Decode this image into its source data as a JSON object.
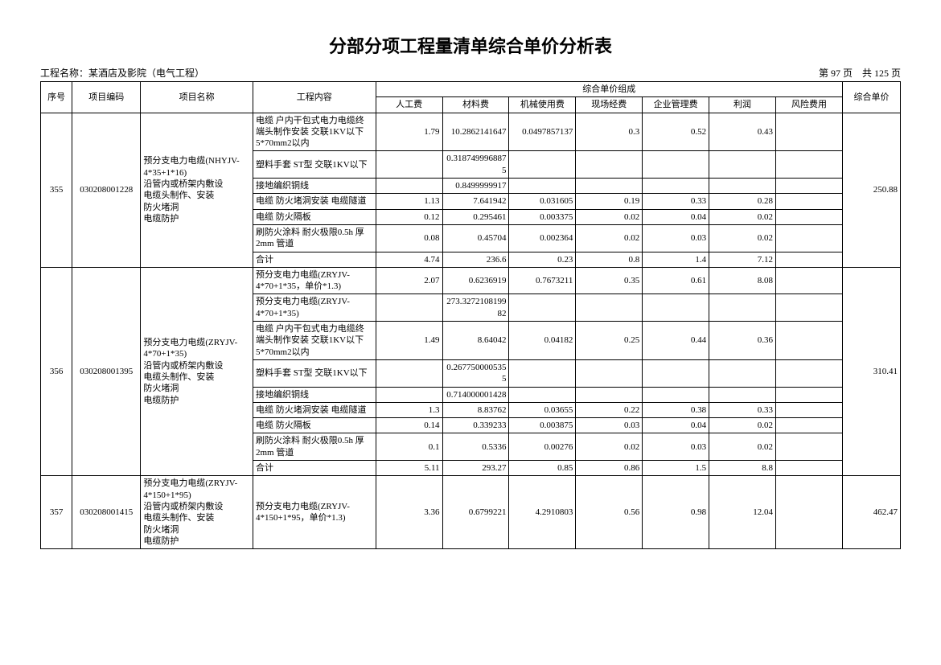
{
  "title": "分部分项工程量清单综合单价分析表",
  "project_label": "工程名称：",
  "project_name": "某酒店及影院（电气工程）",
  "page_label_left": "第",
  "page_current": "97",
  "page_label_mid": "页",
  "page_label_sep": "共",
  "page_total": "125",
  "page_label_end": "页",
  "headers": {
    "seq": "序号",
    "code": "项目编码",
    "name": "项目名称",
    "content": "工程内容",
    "group": "综合单价组成",
    "labor": "人工费",
    "material": "材料费",
    "machine": "机械使用费",
    "site": "现场经费",
    "mgmt": "企业管理费",
    "profit": "利润",
    "risk": "风险费用",
    "total": "综合单价"
  },
  "g1": {
    "seq": "355",
    "code": "030208001228",
    "name": "预分支电力电缆(NHYJV-4*35+1*16)\n沿管内或桥架内敷设\n电缆头制作、安装\n防火堵洞\n电缆防护",
    "total": "250.88",
    "r0": {
      "c": "电缆 户内干包式电力电缆终端头制作安装 交联1KV以下 5*70mm2以内",
      "v0": "1.79",
      "v1": "10.2862141647",
      "v2": "0.0497857137",
      "v3": "0.3",
      "v4": "0.52",
      "v5": "0.43",
      "v6": ""
    },
    "r1": {
      "c": "塑料手套 ST型 交联1KV以下",
      "v0": "",
      "v1": "0.3187499968875",
      "v2": "",
      "v3": "",
      "v4": "",
      "v5": "",
      "v6": ""
    },
    "r2": {
      "c": "接地编织铜线",
      "v0": "",
      "v1": "0.8499999917",
      "v2": "",
      "v3": "",
      "v4": "",
      "v5": "",
      "v6": ""
    },
    "r3": {
      "c": "电缆 防火堵洞安装 电缆隧道",
      "v0": "1.13",
      "v1": "7.641942",
      "v2": "0.031605",
      "v3": "0.19",
      "v4": "0.33",
      "v5": "0.28",
      "v6": ""
    },
    "r4": {
      "c": "电缆 防火隔板",
      "v0": "0.12",
      "v1": "0.295461",
      "v2": "0.003375",
      "v3": "0.02",
      "v4": "0.04",
      "v5": "0.02",
      "v6": ""
    },
    "r5": {
      "c": "刷防火涂料 耐火极限0.5h 厚2mm 管道",
      "v0": "0.08",
      "v1": "0.45704",
      "v2": "0.002364",
      "v3": "0.02",
      "v4": "0.03",
      "v5": "0.02",
      "v6": ""
    },
    "r6": {
      "c": "合计",
      "v0": "4.74",
      "v1": "236.6",
      "v2": "0.23",
      "v3": "0.8",
      "v4": "1.4",
      "v5": "7.12",
      "v6": ""
    }
  },
  "g2": {
    "seq": "356",
    "code": "030208001395",
    "name": "预分支电力电缆(ZRYJV-4*70+1*35)\n沿管内或桥架内敷设\n电缆头制作、安装\n防火堵洞\n电缆防护",
    "total": "310.41",
    "r0": {
      "c": "预分支电力电缆(ZRYJV-4*70+1*35，单价*1.3)",
      "v0": "2.07",
      "v1": "0.6236919",
      "v2": "0.7673211",
      "v3": "0.35",
      "v4": "0.61",
      "v5": "8.08",
      "v6": ""
    },
    "r1": {
      "c": "预分支电力电缆(ZRYJV-4*70+1*35)",
      "v0": "",
      "v1": "273.327210819982",
      "v2": "",
      "v3": "",
      "v4": "",
      "v5": "",
      "v6": ""
    },
    "r2": {
      "c": "电缆 户内干包式电力电缆终端头制作安装 交联1KV以下 5*70mm2以内",
      "v0": "1.49",
      "v1": "8.64042",
      "v2": "0.04182",
      "v3": "0.25",
      "v4": "0.44",
      "v5": "0.36",
      "v6": ""
    },
    "r3": {
      "c": "塑料手套 ST型 交联1KV以下",
      "v0": "",
      "v1": "0.2677500005355",
      "v2": "",
      "v3": "",
      "v4": "",
      "v5": "",
      "v6": ""
    },
    "r4": {
      "c": "接地编织铜线",
      "v0": "",
      "v1": "0.714000001428",
      "v2": "",
      "v3": "",
      "v4": "",
      "v5": "",
      "v6": ""
    },
    "r5": {
      "c": "电缆 防火堵洞安装 电缆隧道",
      "v0": "1.3",
      "v1": "8.83762",
      "v2": "0.03655",
      "v3": "0.22",
      "v4": "0.38",
      "v5": "0.33",
      "v6": ""
    },
    "r6": {
      "c": "电缆 防火隔板",
      "v0": "0.14",
      "v1": "0.339233",
      "v2": "0.003875",
      "v3": "0.03",
      "v4": "0.04",
      "v5": "0.02",
      "v6": ""
    },
    "r7": {
      "c": "刷防火涂料 耐火极限0.5h 厚2mm 管道",
      "v0": "0.1",
      "v1": "0.5336",
      "v2": "0.00276",
      "v3": "0.02",
      "v4": "0.03",
      "v5": "0.02",
      "v6": ""
    },
    "r8": {
      "c": "合计",
      "v0": "5.11",
      "v1": "293.27",
      "v2": "0.85",
      "v3": "0.86",
      "v4": "1.5",
      "v5": "8.8",
      "v6": ""
    }
  },
  "g3": {
    "seq": "357",
    "code": "030208001415",
    "name": "预分支电力电缆(ZRYJV-4*150+1*95)\n沿管内或桥架内敷设\n电缆头制作、安装\n防火堵洞\n电缆防护",
    "total": "462.47",
    "r0": {
      "c": "预分支电力电缆(ZRYJV-4*150+1*95，单价*1.3)",
      "v0": "3.36",
      "v1": "0.6799221",
      "v2": "4.2910803",
      "v3": "0.56",
      "v4": "0.98",
      "v5": "12.04",
      "v6": ""
    }
  }
}
